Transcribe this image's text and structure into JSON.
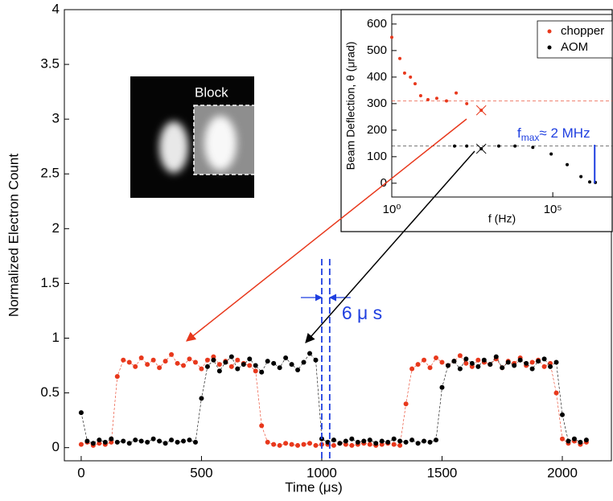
{
  "chart_data": [
    {
      "type": "scatter",
      "xlabel": "Time (μs)",
      "ylabel": "Normalized Electron Count",
      "x": [
        0,
        25,
        50,
        75,
        100,
        125,
        150,
        175,
        200,
        225,
        250,
        275,
        300,
        325,
        350,
        375,
        400,
        425,
        450,
        475,
        500,
        525,
        550,
        575,
        600,
        625,
        650,
        675,
        700,
        725,
        750,
        775,
        800,
        825,
        850,
        875,
        900,
        925,
        950,
        975,
        1000,
        1025,
        1050,
        1075,
        1100,
        1125,
        1150,
        1175,
        1200,
        1225,
        1250,
        1275,
        1300,
        1325,
        1350,
        1375,
        1400,
        1425,
        1450,
        1475,
        1500,
        1525,
        1550,
        1575,
        1600,
        1625,
        1650,
        1675,
        1700,
        1725,
        1750,
        1775,
        1800,
        1825,
        1850,
        1875,
        1900,
        1925,
        1950,
        1975,
        2000,
        2025,
        2050,
        2075,
        2100
      ],
      "series": [
        {
          "name": "chopper",
          "color": "#e8381c",
          "values": [
            0.03,
            0.05,
            0.02,
            0.04,
            0.03,
            0.05,
            0.65,
            0.8,
            0.78,
            0.74,
            0.82,
            0.76,
            0.8,
            0.73,
            0.79,
            0.85,
            0.77,
            0.75,
            0.81,
            0.78,
            0.72,
            0.8,
            0.83,
            0.76,
            0.79,
            0.74,
            0.8,
            0.77,
            0.75,
            0.7,
            0.2,
            0.05,
            0.03,
            0.02,
            0.04,
            0.03,
            0.02,
            0.03,
            0.04,
            0.02,
            0.03,
            0.03,
            0.02,
            0.04,
            0.03,
            0.02,
            0.03,
            0.04,
            0.03,
            0.02,
            0.03,
            0.04,
            0.03,
            0.02,
            0.4,
            0.72,
            0.76,
            0.8,
            0.73,
            0.82,
            0.78,
            0.75,
            0.79,
            0.84,
            0.77,
            0.74,
            0.8,
            0.78,
            0.76,
            0.81,
            0.73,
            0.79,
            0.77,
            0.82,
            0.75,
            0.78,
            0.8,
            0.74,
            0.77,
            0.5,
            0.08,
            0.04,
            0.06,
            0.03,
            0.05
          ]
        },
        {
          "name": "AOM",
          "color": "#000000",
          "values": [
            0.32,
            0.06,
            0.04,
            0.07,
            0.05,
            0.08,
            0.05,
            0.06,
            0.04,
            0.07,
            0.06,
            0.05,
            0.08,
            0.06,
            0.04,
            0.07,
            0.05,
            0.06,
            0.07,
            0.05,
            0.45,
            0.74,
            0.8,
            0.7,
            0.78,
            0.83,
            0.72,
            0.76,
            0.81,
            0.75,
            0.69,
            0.79,
            0.77,
            0.73,
            0.82,
            0.76,
            0.71,
            0.78,
            0.86,
            0.8,
            0.08,
            0.05,
            0.07,
            0.04,
            0.06,
            0.08,
            0.05,
            0.06,
            0.07,
            0.04,
            0.06,
            0.05,
            0.08,
            0.06,
            0.05,
            0.07,
            0.04,
            0.06,
            0.05,
            0.07,
            0.55,
            0.75,
            0.79,
            0.72,
            0.81,
            0.77,
            0.74,
            0.8,
            0.76,
            0.83,
            0.73,
            0.78,
            0.75,
            0.8,
            0.77,
            0.72,
            0.79,
            0.81,
            0.74,
            0.78,
            0.3,
            0.06,
            0.08,
            0.05,
            0.07
          ]
        }
      ],
      "xlim": [
        -70,
        2204
      ],
      "ylim": [
        -0.12,
        4
      ],
      "xticks": [
        0,
        500,
        1000,
        1500,
        2000
      ],
      "yticks": [
        0,
        0.5,
        1,
        1.5,
        2,
        2.5,
        3,
        3.5,
        4
      ],
      "vlines": [
        1000,
        1033
      ],
      "vline_color": "#1f3fe0",
      "annotation": "6 μ s",
      "image_label": "Block"
    },
    {
      "type": "scatter",
      "log_x": true,
      "xlabel": "f (Hz)",
      "ylabel": "Beam Deflection, θ (μrad)",
      "series": [
        {
          "name": "chopper",
          "color": "#e8381c",
          "x": [
            1,
            1.78,
            2.5,
            3.8,
            5.3,
            7.9,
            13.3,
            25,
            50,
            100,
            213,
            600
          ],
          "values": [
            550,
            470,
            415,
            400,
            375,
            330,
            315,
            320,
            310,
            340,
            300,
            275
          ]
        },
        {
          "name": "AOM",
          "color": "#000000",
          "x": [
            89,
            213,
            600,
            2100,
            6700,
            24000,
            89000,
            280000,
            750000,
            1400000,
            2100000
          ],
          "values": [
            140,
            140,
            130,
            140,
            140,
            135,
            110,
            70,
            25,
            5,
            3
          ]
        }
      ],
      "hlines": [
        310,
        140
      ],
      "highlight_x": 600,
      "xlim": [
        1,
        7000000
      ],
      "ylim": [
        -52,
        636
      ],
      "xticks": [
        {
          "value": 1,
          "label": "10⁰"
        },
        {
          "value": 100000,
          "label": "10⁵"
        }
      ],
      "yticks": [
        0,
        100,
        200,
        300,
        400,
        500,
        600
      ],
      "fmax": {
        "x": 2000000,
        "symbol": "f",
        "subscript": "max",
        "text": "≈ 2 MHz",
        "color": "#1f3fe0"
      },
      "legend": "top-right"
    }
  ]
}
